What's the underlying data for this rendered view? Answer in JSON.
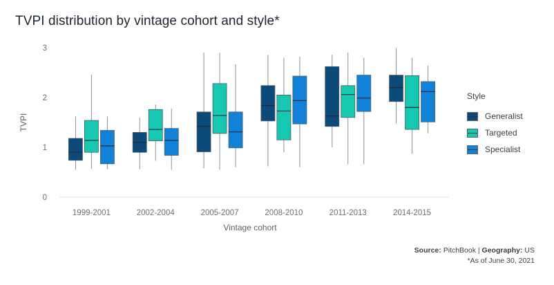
{
  "title": "TVPI distribution by vintage cohort and style*",
  "source": {
    "source_label": "Source:",
    "source_value": "PitchBook",
    "separator": "|",
    "geo_label": "Geography:",
    "geo_value": "US",
    "note": "*As of June 30, 2021"
  },
  "chart_data": {
    "type": "boxplot",
    "xlabel": "Vintage cohort",
    "ylabel": "TVPI",
    "ylim": [
      0,
      3
    ],
    "yticks": [
      0,
      1,
      2,
      3
    ],
    "grid": false,
    "legend": {
      "title": "Style",
      "position": "right"
    },
    "categories": [
      "1999-2001",
      "2002-2004",
      "2005-2007",
      "2008-2010",
      "2011-2013",
      "2014-2015"
    ],
    "series": [
      {
        "name": "Generalist",
        "color": "#0c4a7a",
        "boxes": [
          {
            "min": 0.55,
            "q1": 0.74,
            "median": 0.9,
            "q3": 1.18,
            "max": 1.62
          },
          {
            "min": 0.56,
            "q1": 0.9,
            "median": 1.1,
            "q3": 1.3,
            "max": 1.6
          },
          {
            "min": 0.58,
            "q1": 0.91,
            "median": 1.42,
            "q3": 1.71,
            "max": 2.9
          },
          {
            "min": 0.62,
            "q1": 1.53,
            "median": 1.84,
            "q3": 2.24,
            "max": 2.86
          },
          {
            "min": 1.0,
            "q1": 1.42,
            "median": 1.63,
            "q3": 2.62,
            "max": 2.86
          },
          {
            "min": 1.48,
            "q1": 1.92,
            "median": 2.2,
            "q3": 2.45,
            "max": 2.99
          }
        ]
      },
      {
        "name": "Targeted",
        "color": "#16c8b1",
        "boxes": [
          {
            "min": 0.57,
            "q1": 0.9,
            "median": 1.14,
            "q3": 1.54,
            "max": 2.46
          },
          {
            "min": 0.73,
            "q1": 1.13,
            "median": 1.36,
            "q3": 1.76,
            "max": 1.86
          },
          {
            "min": 0.55,
            "q1": 1.28,
            "median": 1.64,
            "q3": 2.28,
            "max": 2.9
          },
          {
            "min": 0.9,
            "q1": 1.15,
            "median": 1.73,
            "q3": 2.05,
            "max": 2.8
          },
          {
            "min": 0.66,
            "q1": 1.6,
            "median": 2.06,
            "q3": 2.24,
            "max": 2.9
          },
          {
            "min": 0.87,
            "q1": 1.36,
            "median": 1.8,
            "q3": 2.44,
            "max": 2.8
          }
        ]
      },
      {
        "name": "Specialist",
        "color": "#1282d8",
        "boxes": [
          {
            "min": 0.56,
            "q1": 0.67,
            "median": 1.03,
            "q3": 1.34,
            "max": 1.62
          },
          {
            "min": 0.55,
            "q1": 0.84,
            "median": 1.14,
            "q3": 1.38,
            "max": 1.78
          },
          {
            "min": 0.6,
            "q1": 0.99,
            "median": 1.31,
            "q3": 1.71,
            "max": 2.67
          },
          {
            "min": 0.6,
            "q1": 1.47,
            "median": 1.94,
            "q3": 2.43,
            "max": 2.82
          },
          {
            "min": 0.66,
            "q1": 1.72,
            "median": 1.99,
            "q3": 2.45,
            "max": 2.8
          },
          {
            "min": 1.28,
            "q1": 1.51,
            "median": 2.12,
            "q3": 2.32,
            "max": 2.64
          }
        ]
      }
    ]
  }
}
